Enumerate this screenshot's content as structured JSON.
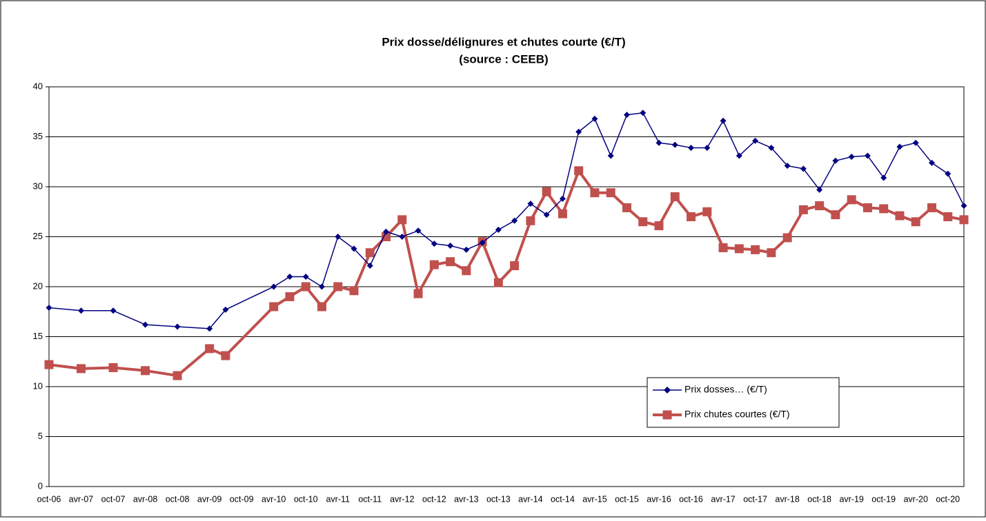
{
  "chart_data": {
    "type": "line",
    "title": "Prix dosse/délignures et chutes courte (€/T)",
    "subtitle": "(source : CEEB)",
    "categories": [
      "oct-06",
      null,
      "avr-07",
      null,
      "oct-07",
      null,
      "avr-08",
      null,
      "oct-08",
      null,
      "avr-09",
      null,
      "oct-09",
      null,
      "avr-10",
      null,
      "oct-10",
      null,
      "avr-11",
      null,
      "oct-11",
      null,
      "avr-12",
      null,
      "oct-12",
      null,
      "avr-13",
      null,
      "oct-13",
      null,
      "avr-14",
      null,
      "oct-14",
      null,
      "avr-15",
      null,
      "oct-15",
      null,
      "avr-16",
      null,
      "oct-16",
      null,
      "avr-17",
      null,
      "oct-17",
      null,
      "avr-18",
      null,
      "oct-18",
      null,
      "avr-19",
      null,
      "oct-19",
      null,
      "avr-20",
      null,
      "oct-20",
      null
    ],
    "series": [
      {
        "name": "Prix dosses… (€/T)",
        "color": "#000080",
        "marker": "diamond",
        "values": [
          17.9,
          null,
          17.6,
          null,
          17.6,
          null,
          16.2,
          null,
          16.0,
          null,
          15.8,
          17.7,
          null,
          null,
          20.0,
          21.0,
          21.0,
          20.0,
          25.0,
          23.8,
          22.1,
          25.5,
          25.0,
          25.6,
          24.3,
          24.1,
          23.7,
          24.4,
          25.7,
          26.6,
          28.3,
          27.2,
          28.8,
          35.5,
          36.8,
          33.1,
          37.2,
          37.4,
          34.4,
          34.2,
          33.9,
          33.9,
          36.6,
          33.1,
          34.6,
          33.9,
          32.1,
          31.8,
          29.7,
          32.6,
          33.0,
          33.1,
          30.9,
          34.0,
          34.4,
          32.4,
          31.3,
          28.1
        ]
      },
      {
        "name": "Prix chutes courtes (€/T)",
        "color": "#c0504d",
        "marker": "square",
        "values": [
          12.2,
          null,
          11.8,
          null,
          11.9,
          null,
          11.6,
          null,
          11.1,
          null,
          13.8,
          13.1,
          null,
          null,
          18.0,
          19.0,
          20.0,
          18.0,
          20.0,
          19.6,
          23.4,
          25.0,
          26.7,
          19.3,
          22.2,
          22.5,
          21.6,
          24.5,
          20.4,
          22.1,
          26.6,
          29.5,
          27.3,
          31.6,
          29.4,
          29.4,
          27.9,
          26.5,
          26.1,
          29.0,
          27.0,
          27.5,
          23.9,
          23.8,
          23.7,
          23.4,
          24.9,
          27.7,
          28.1,
          27.2,
          28.7,
          27.9,
          27.8,
          27.1,
          26.5,
          27.9,
          27.0,
          26.7
        ]
      }
    ],
    "ylim": [
      0,
      40
    ],
    "yticks": [
      0,
      5,
      10,
      15,
      20,
      25,
      30,
      35,
      40
    ],
    "grid": true,
    "span_gaps": true,
    "legend": "lower right"
  }
}
